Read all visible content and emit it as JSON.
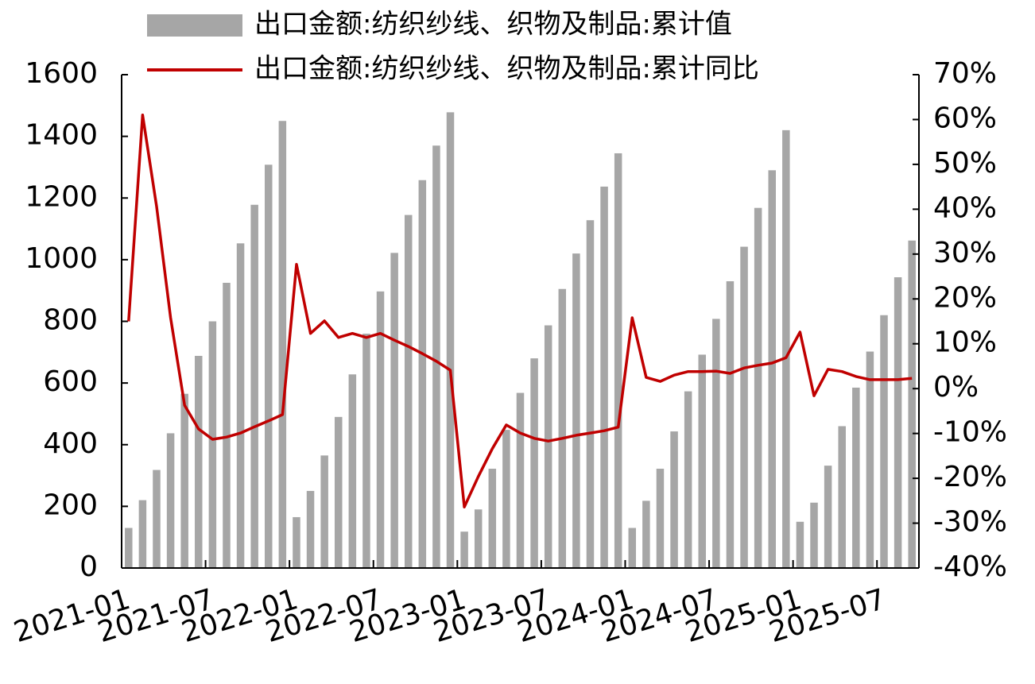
{
  "chart_data": {
    "type": "bar-line",
    "categories": [
      "2021-01",
      null,
      null,
      null,
      null,
      null,
      "2021-07",
      null,
      null,
      null,
      null,
      null,
      "2022-01",
      null,
      null,
      null,
      null,
      null,
      "2022-07",
      null,
      null,
      null,
      null,
      null,
      "2023-01",
      null,
      null,
      null,
      null,
      null,
      "2023-07",
      null,
      null,
      null,
      null,
      null,
      "2024-01",
      null,
      null,
      null,
      null,
      null,
      "2024-07",
      null,
      null,
      null,
      null,
      null,
      "2025-01",
      null,
      null,
      null,
      null,
      null,
      "2025-07",
      null,
      null
    ],
    "series": [
      {
        "name": "出口金额:纺织纱线、织物及制品:累计值",
        "type": "bar",
        "color": "#a6a6a6",
        "values": [
          130,
          220,
          318,
          437,
          565,
          688,
          800,
          925,
          1053,
          1178,
          1308,
          1450,
          165,
          250,
          365,
          490,
          628,
          760,
          897,
          1022,
          1145,
          1258,
          1370,
          1478,
          118,
          190,
          322,
          448,
          568,
          680,
          787,
          905,
          1020,
          1128,
          1237,
          1345,
          130,
          218,
          322,
          443,
          573,
          692,
          808,
          930,
          1042,
          1168,
          1290,
          1420,
          150,
          212,
          332,
          460,
          585,
          702,
          820,
          943,
          1062
        ]
      },
      {
        "name": "出口金额:纺织纱线、织物及制品:累计同比",
        "type": "line",
        "axis": "y2",
        "color": "#c00000",
        "values": [
          15,
          61,
          40.6,
          15.8,
          -3.7,
          -9,
          -11.3,
          -10.8,
          -9.9,
          -8.5,
          -7.2,
          -5.8,
          27.7,
          12.3,
          15.1,
          11.4,
          12.3,
          11.4,
          12.3,
          10.8,
          9.4,
          7.8,
          6.1,
          4.1,
          -26.4,
          -19.6,
          -13.4,
          -8.1,
          -9.9,
          -11.1,
          -11.7,
          -11.1,
          -10.4,
          -9.9,
          -9.4,
          -8.6,
          15.8,
          2.5,
          1.6,
          3,
          3.8,
          3.8,
          3.9,
          3.4,
          4.6,
          5.2,
          5.7,
          6.9,
          12.6,
          -1.6,
          4.3,
          3.8,
          2.7,
          2,
          2,
          2,
          2.3
        ]
      }
    ],
    "ylim": [
      0,
      1600
    ],
    "yticks": [
      0,
      200,
      400,
      600,
      800,
      1000,
      1200,
      1400,
      1600
    ],
    "y2lim": [
      -40,
      70
    ],
    "y2ticks": [
      {
        "value": -40,
        "label": "-40%"
      },
      {
        "value": -30,
        "label": "-30%"
      },
      {
        "value": -20,
        "label": "-20%"
      },
      {
        "value": -10,
        "label": "-10%"
      },
      {
        "value": 0,
        "label": "0%"
      },
      {
        "value": 10,
        "label": "10%"
      },
      {
        "value": 20,
        "label": "20%"
      },
      {
        "value": 30,
        "label": "30%"
      },
      {
        "value": 40,
        "label": "40%"
      },
      {
        "value": 50,
        "label": "50%"
      },
      {
        "value": 60,
        "label": "60%"
      },
      {
        "value": 70,
        "label": "70%"
      }
    ],
    "grid": false
  }
}
